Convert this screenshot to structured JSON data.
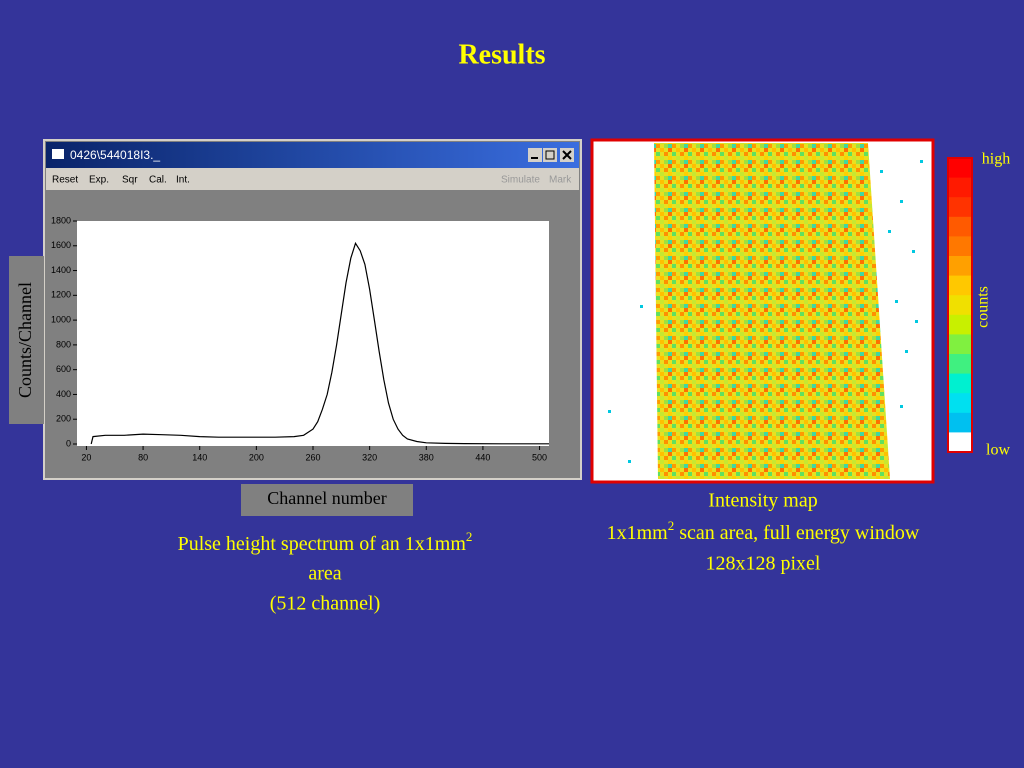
{
  "slide_title": "Results",
  "window": {
    "title": "0426\\544018I3._",
    "menu": [
      "Reset",
      "Exp.",
      "Sqr",
      "Cal.",
      "Int."
    ],
    "menu_right": [
      "Simulate",
      "Mark"
    ]
  },
  "chart_data": {
    "type": "line",
    "color": "#000000",
    "x_label": "Channel number",
    "y_label": "Counts/Channel",
    "x": [
      25,
      27,
      40,
      60,
      80,
      100,
      120,
      140,
      160,
      180,
      200,
      220,
      240,
      250,
      260,
      265,
      270,
      275,
      280,
      285,
      290,
      295,
      300,
      305,
      310,
      315,
      320,
      325,
      330,
      335,
      340,
      345,
      350,
      355,
      360,
      370,
      380,
      400,
      420,
      460,
      510
    ],
    "values": [
      0,
      60,
      70,
      70,
      80,
      75,
      70,
      60,
      55,
      55,
      55,
      55,
      60,
      70,
      120,
      180,
      280,
      400,
      580,
      800,
      1050,
      1300,
      1500,
      1620,
      1560,
      1450,
      1250,
      1000,
      750,
      520,
      330,
      200,
      120,
      70,
      40,
      20,
      10,
      5,
      3,
      2,
      2
    ],
    "xlim": [
      10,
      510
    ],
    "ylim": [
      0,
      1800
    ],
    "xticks": [
      20,
      80,
      140,
      200,
      260,
      320,
      380,
      440,
      500
    ],
    "yticks": [
      0,
      200,
      400,
      600,
      800,
      1000,
      1200,
      1400,
      1600,
      1800
    ]
  },
  "spectrum_caption": {
    "line1": "Pulse height spectrum of an 1x1mm",
    "sup": "2",
    "line2": "area",
    "line3": "(512 channel)"
  },
  "map": {
    "caption1": "Intensity map",
    "caption2a": "1x1mm",
    "sup": "2",
    "caption2b": " scan area, full energy window",
    "caption3": "128x128 pixel",
    "colorbar": {
      "high": "high",
      "low": "low",
      "label": "counts",
      "colors": [
        "#ff0000",
        "#ff1a00",
        "#ff3300",
        "#ff5a00",
        "#ff7800",
        "#ffa000",
        "#ffc800",
        "#f0e000",
        "#c8f000",
        "#80f040",
        "#40f080",
        "#00f0d0",
        "#00e0f0",
        "#00c0f0",
        "#ffffff"
      ]
    }
  }
}
